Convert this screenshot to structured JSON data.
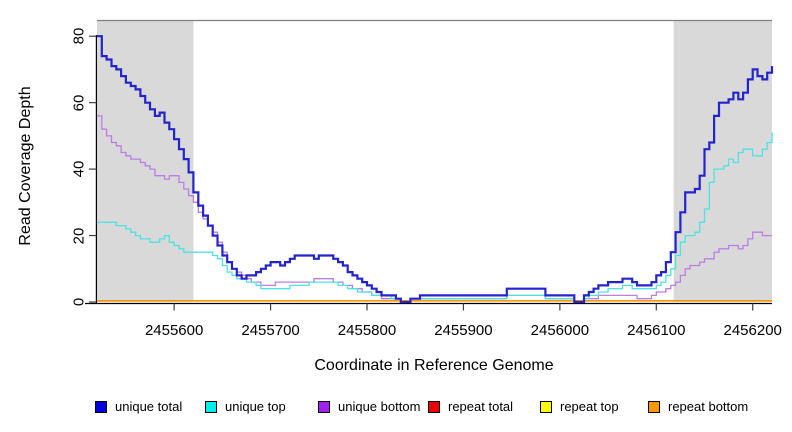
{
  "chart_data": {
    "type": "line",
    "subtype": "step",
    "title": "",
    "xlabel": "Coordinate in Reference Genome",
    "ylabel": "Read Coverage Depth",
    "xlim": [
      2455520,
      2456220
    ],
    "ylim": [
      0,
      80
    ],
    "grid": false,
    "background": "#FFFFFF",
    "shading_color": "#D9D9D9",
    "top_border_color": "#7F7F7F",
    "axis_color": "#000000",
    "legend_position": "bottom",
    "x_ticks": [
      2455600,
      2455700,
      2455800,
      2455900,
      2456000,
      2456100,
      2456200
    ],
    "x_tick_labels": [
      "2455600",
      "2455700",
      "2455800",
      "2455900",
      "2456000",
      "2456100",
      "2456200"
    ],
    "y_ticks": [
      0,
      20,
      40,
      60,
      80
    ],
    "y_tick_labels": [
      "0",
      "20",
      "40",
      "60",
      "80"
    ],
    "shaded_regions": [
      {
        "x0": 2455520,
        "x1": 2455620
      },
      {
        "x0": 2456118,
        "x1": 2456220
      }
    ],
    "series": [
      {
        "name": "unique total",
        "line_color": "#2424CD",
        "legend_fill": "#0000DD",
        "line_width": 2.2,
        "x_start": 2455520,
        "x_step": 5,
        "values": [
          80,
          74,
          73,
          71,
          70,
          68,
          66,
          65,
          64,
          62,
          60,
          58,
          56,
          57,
          54,
          52,
          49,
          46,
          43,
          39,
          33,
          29,
          26,
          23,
          20,
          17,
          14,
          12,
          10,
          8,
          7,
          8,
          8,
          9,
          10,
          11,
          12,
          12,
          11,
          12,
          13,
          14,
          14,
          14,
          14,
          13,
          14,
          14,
          14,
          13,
          12,
          11,
          9,
          8,
          7,
          6,
          5,
          4,
          3,
          2,
          2,
          2,
          1,
          0,
          0,
          1,
          1,
          2,
          2,
          2,
          2,
          2,
          2,
          2,
          2,
          2,
          2,
          2,
          2,
          2,
          2,
          2,
          2,
          2,
          2,
          4,
          4,
          4,
          4,
          4,
          4,
          4,
          4,
          2,
          2,
          2,
          2,
          2,
          2,
          0,
          0,
          2,
          3,
          4,
          5,
          5,
          6,
          6,
          6,
          7,
          7,
          6,
          5,
          5,
          5,
          6,
          8,
          9,
          12,
          15,
          21,
          27,
          33,
          33,
          34,
          38,
          46,
          48,
          56,
          60,
          60,
          61,
          63,
          61,
          63,
          67,
          70,
          68,
          67,
          69,
          71
        ]
      },
      {
        "name": "unique top",
        "line_color": "#4FE2E2",
        "legend_fill": "#00EEEE",
        "line_width": 1.3,
        "x_start": 2455520,
        "x_step": 5,
        "values": [
          24,
          24,
          24,
          24,
          23,
          23,
          22,
          21,
          20,
          19,
          19,
          18,
          18,
          19,
          20,
          18,
          17,
          16,
          15,
          15,
          15,
          15,
          15,
          15,
          14,
          13,
          11,
          9,
          8,
          7,
          7,
          6,
          6,
          5,
          4,
          4,
          4,
          4,
          4,
          4,
          5,
          5,
          5,
          5,
          6,
          6,
          6,
          6,
          6,
          6,
          5,
          5,
          4,
          4,
          3,
          3,
          3,
          2,
          2,
          2,
          2,
          1,
          1,
          0,
          0,
          1,
          1,
          1,
          1,
          1,
          1,
          1,
          1,
          1,
          1,
          1,
          1,
          1,
          1,
          1,
          1,
          1,
          1,
          1,
          1,
          2,
          2,
          2,
          2,
          2,
          2,
          2,
          2,
          1,
          1,
          1,
          1,
          1,
          1,
          0,
          0,
          1,
          2,
          2,
          3,
          3,
          4,
          4,
          4,
          5,
          5,
          4,
          4,
          4,
          4,
          4,
          5,
          6,
          8,
          10,
          14,
          18,
          20,
          20,
          21,
          24,
          28,
          36,
          40,
          40,
          41,
          43,
          42,
          45,
          46,
          46,
          44,
          44,
          46,
          48,
          51
        ]
      },
      {
        "name": "unique bottom",
        "line_color": "#BD7EE3",
        "legend_fill": "#A020F0",
        "line_width": 1.3,
        "x_start": 2455520,
        "x_step": 5,
        "values": [
          56,
          52,
          50,
          48,
          47,
          45,
          44,
          43,
          43,
          42,
          41,
          40,
          38,
          38,
          37,
          38,
          38,
          36,
          34,
          32,
          30,
          27,
          25,
          23,
          21,
          18,
          15,
          12,
          10,
          9,
          8,
          7,
          6,
          6,
          5,
          5,
          5,
          6,
          6,
          6,
          6,
          6,
          6,
          6,
          6,
          7,
          7,
          7,
          7,
          6,
          6,
          5,
          5,
          4,
          4,
          3,
          3,
          2,
          2,
          1,
          1,
          1,
          1,
          0,
          0,
          1,
          1,
          1,
          1,
          1,
          1,
          1,
          1,
          1,
          1,
          1,
          1,
          1,
          1,
          1,
          1,
          1,
          1,
          1,
          1,
          2,
          2,
          2,
          2,
          2,
          2,
          2,
          2,
          1,
          1,
          1,
          1,
          1,
          1,
          0,
          0,
          1,
          1,
          1,
          2,
          2,
          2,
          2,
          2,
          2,
          2,
          2,
          1,
          1,
          1,
          2,
          3,
          3,
          4,
          5,
          6,
          8,
          10,
          11,
          11,
          12,
          13,
          13,
          15,
          16,
          16,
          17,
          17,
          16,
          17,
          19,
          21,
          21,
          20,
          20,
          20
        ]
      },
      {
        "name": "repeat total",
        "line_color": "#E60000",
        "legend_fill": "#EE0000",
        "line_width": 1.3,
        "x_start": 2455520,
        "x_step": 700,
        "values": [
          0,
          0
        ]
      },
      {
        "name": "repeat top",
        "line_color": "#FFFF00",
        "legend_fill": "#FFFF00",
        "line_width": 1.3,
        "x_start": 2455520,
        "x_step": 700,
        "values": [
          0,
          0
        ]
      },
      {
        "name": "repeat bottom",
        "line_color": "#FF9700",
        "legend_fill": "#FF9700",
        "line_width": 1.6,
        "x_start": 2455520,
        "x_step": 700,
        "values": [
          0,
          0
        ]
      }
    ]
  }
}
